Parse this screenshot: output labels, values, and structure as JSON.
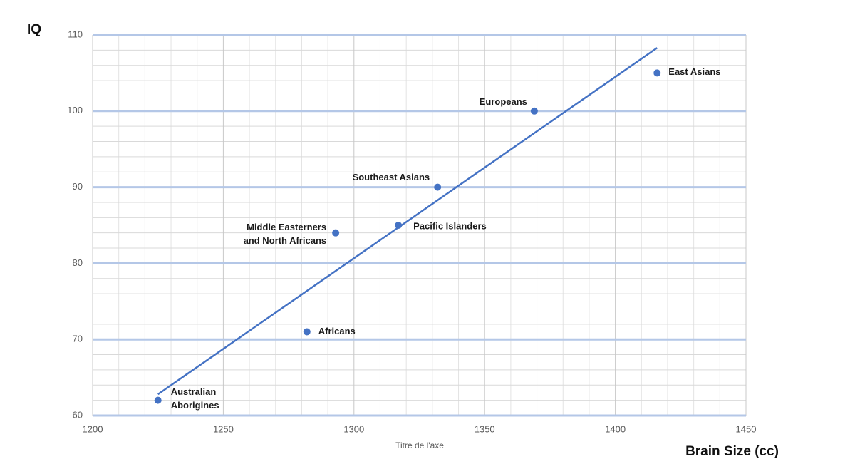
{
  "chart_data": {
    "type": "scatter",
    "y_title": "IQ",
    "x_title": "Brain Size (cc)",
    "x_axis_placeholder": "Titre de l'axe",
    "series": [
      {
        "color": "#4472c4",
        "labels": [
          [
            "Australian",
            "Aborigines"
          ],
          [
            "Africans"
          ],
          [
            "Middle Easterners",
            "and North Africans"
          ],
          [
            "Pacific Islanders"
          ],
          [
            "Southeast Asians"
          ],
          [
            "Europeans"
          ],
          [
            "East Asians"
          ]
        ],
        "x": [
          1225,
          1282,
          1293,
          1317,
          1332,
          1369,
          1416
        ],
        "values": [
          62,
          71,
          84,
          85,
          90,
          100,
          105
        ]
      }
    ],
    "trendline": {
      "color": "#4472c4",
      "x": [
        1225,
        1416
      ],
      "values": [
        62.8,
        108.3
      ]
    },
    "xlim": [
      1200,
      1450
    ],
    "xticks": [
      1200,
      1250,
      1300,
      1350,
      1400,
      1450
    ],
    "ylim": [
      60,
      110
    ],
    "yticks": [
      60,
      70,
      80,
      90,
      100,
      110
    ],
    "x_minor_ticks": [
      1210,
      1220,
      1230,
      1240,
      1260,
      1270,
      1280,
      1290,
      1310,
      1320,
      1330,
      1340,
      1360,
      1370,
      1380,
      1390,
      1410,
      1420,
      1430,
      1440
    ],
    "y_minor_ticks": [
      62,
      64,
      66,
      68,
      72,
      74,
      76,
      78,
      82,
      84,
      86,
      88,
      92,
      94,
      96,
      98,
      102,
      104,
      106,
      108
    ],
    "grid": true
  }
}
